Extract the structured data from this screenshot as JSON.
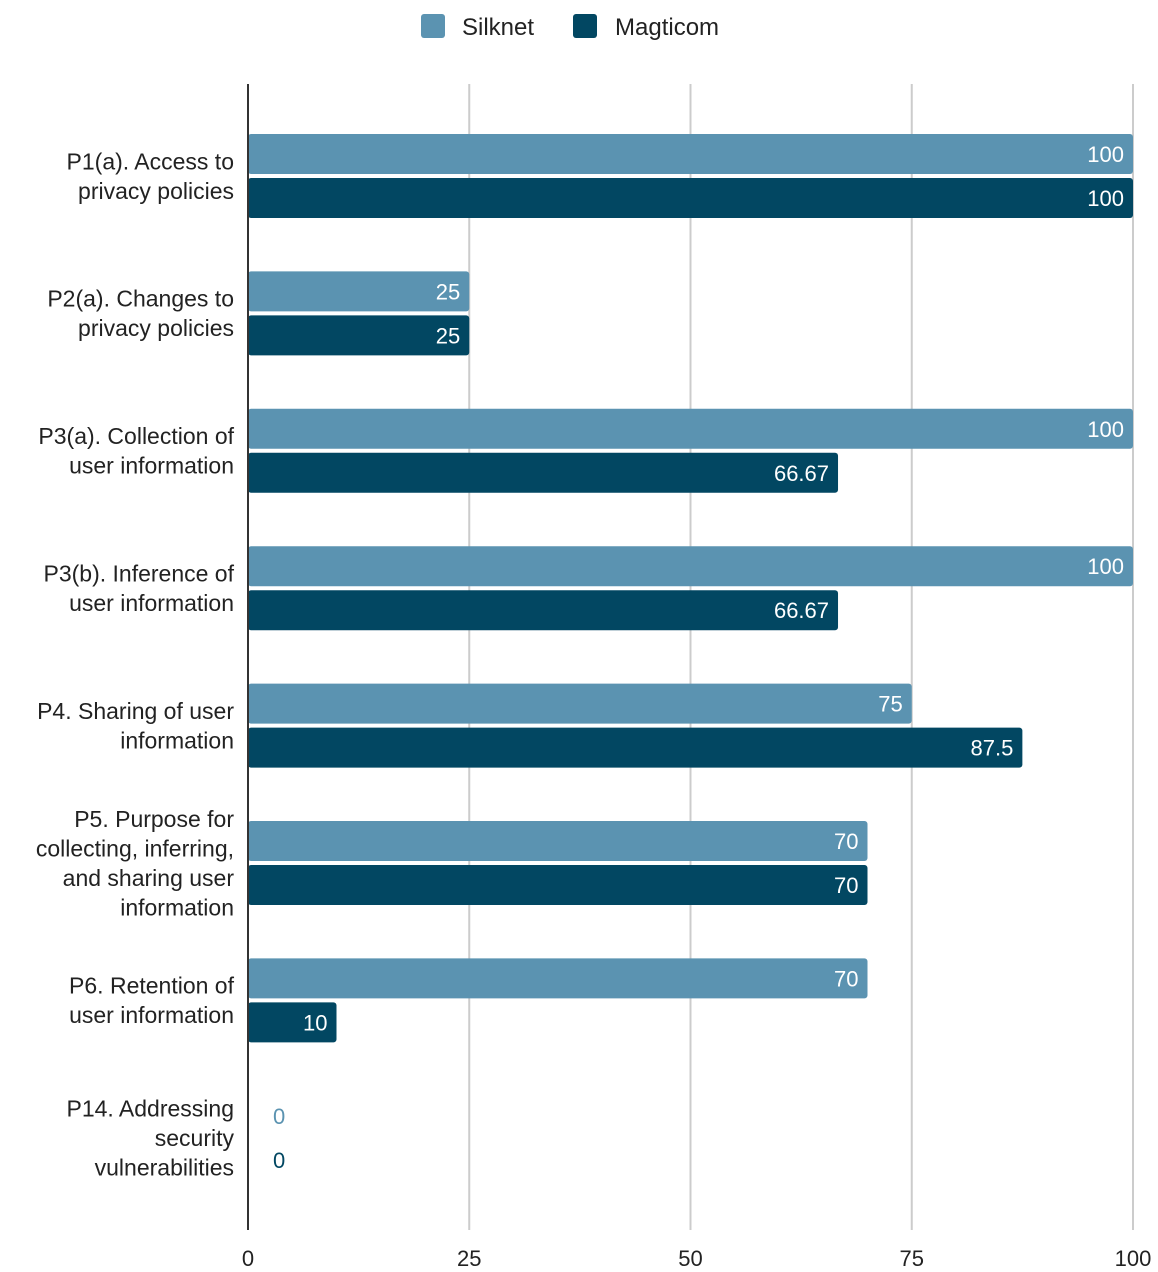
{
  "chart_data": {
    "type": "bar",
    "orientation": "horizontal",
    "categories": [
      [
        "P1(a). Access to",
        "privacy policies"
      ],
      [
        "P2(a). Changes to",
        "privacy policies"
      ],
      [
        "P3(a). Collection of",
        "user information"
      ],
      [
        "P3(b). Inference of",
        "user information"
      ],
      [
        "P4. Sharing of user",
        "information"
      ],
      [
        "P5. Purpose for",
        "collecting, inferring,",
        "and sharing user",
        "information"
      ],
      [
        "P6. Retention of",
        "user information"
      ],
      [
        "P14. Addressing",
        "security",
        "vulnerabilities"
      ]
    ],
    "series": [
      {
        "name": "Silknet",
        "color": "#5b93b1",
        "values": [
          100,
          25,
          100,
          100,
          75,
          70,
          70,
          0
        ],
        "labels": [
          "100",
          "25",
          "100",
          "100",
          "75",
          "70",
          "70",
          "0"
        ]
      },
      {
        "name": "Magticom",
        "color": "#024762",
        "values": [
          100,
          25,
          66.67,
          66.67,
          87.5,
          70,
          10,
          0
        ],
        "labels": [
          "100",
          "25",
          "66.67",
          "66.67",
          "87.5",
          "70",
          "10",
          "0"
        ]
      }
    ],
    "xlim": [
      0,
      100
    ],
    "xticks": [
      "0",
      "25",
      "50",
      "75",
      "100"
    ],
    "grid": "vertical",
    "legend": "top-center",
    "title": "",
    "xlabel": "",
    "ylabel": ""
  }
}
